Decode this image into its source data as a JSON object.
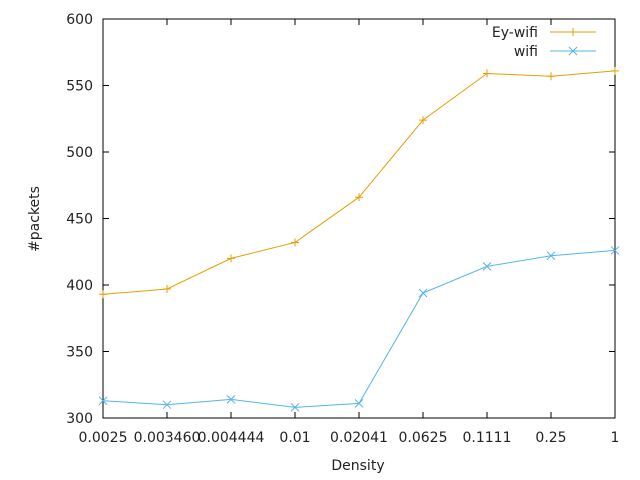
{
  "chart_data": {
    "type": "line",
    "title": "",
    "xlabel": "Density",
    "ylabel": "#packets",
    "categories": [
      "0.0025",
      "0.003460",
      "0.004444",
      "0.01",
      "0.02041",
      "0.0625",
      "0.1111",
      "0.25",
      "1"
    ],
    "ylim": [
      300,
      600
    ],
    "yticks": [
      300,
      350,
      400,
      450,
      500,
      550,
      600
    ],
    "grid": false,
    "legend_position": "top-right",
    "series": [
      {
        "name": "Ey-wifi",
        "color": "#e69f00",
        "marker": "plus",
        "values": [
          393,
          397,
          420,
          432,
          466,
          524,
          559,
          557,
          561
        ]
      },
      {
        "name": "wifi",
        "color": "#56b4e9",
        "marker": "cross",
        "values": [
          313,
          310,
          314,
          308,
          311,
          394,
          414,
          422,
          426
        ]
      }
    ]
  }
}
